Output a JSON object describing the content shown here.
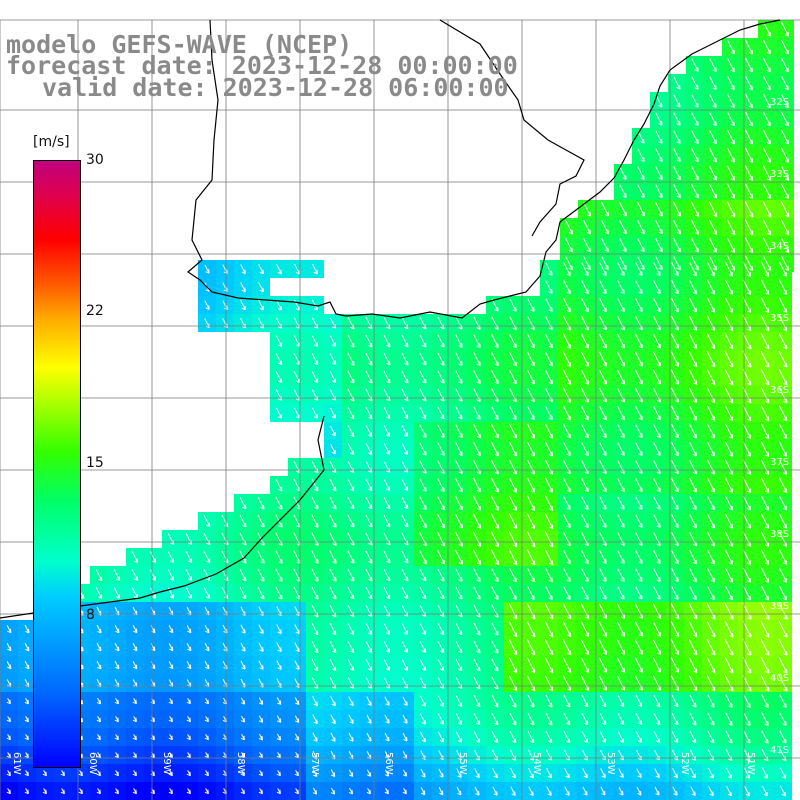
{
  "title": {
    "line1": "modelo GEFS-WAVE (NCEP)",
    "line2": "forecast date: 2023-12-28 00:00:00",
    "line3": "valid date: 2023-12-28 06:00:00"
  },
  "colorbar": {
    "unit": "[m/s]",
    "ticks": [
      "30",
      "22",
      "15",
      "8"
    ],
    "tick_values": [
      30,
      22,
      15,
      8
    ],
    "min": 0,
    "max": 30
  },
  "grid": {
    "lat_labels": [
      "32S",
      "33S",
      "34S",
      "35S",
      "36S",
      "37S",
      "38S",
      "39S",
      "40S",
      "41S"
    ],
    "lon_labels": [
      "61W",
      "60W",
      "59W",
      "58W",
      "57W",
      "56W",
      "55W",
      "54W",
      "53W",
      "52W",
      "51W"
    ]
  },
  "colors": {
    "land": "#ffffff",
    "coast": "#000000",
    "grid": "#7a7a7a",
    "arrows": "#ffffff",
    "title": "#8a8a8a"
  }
}
